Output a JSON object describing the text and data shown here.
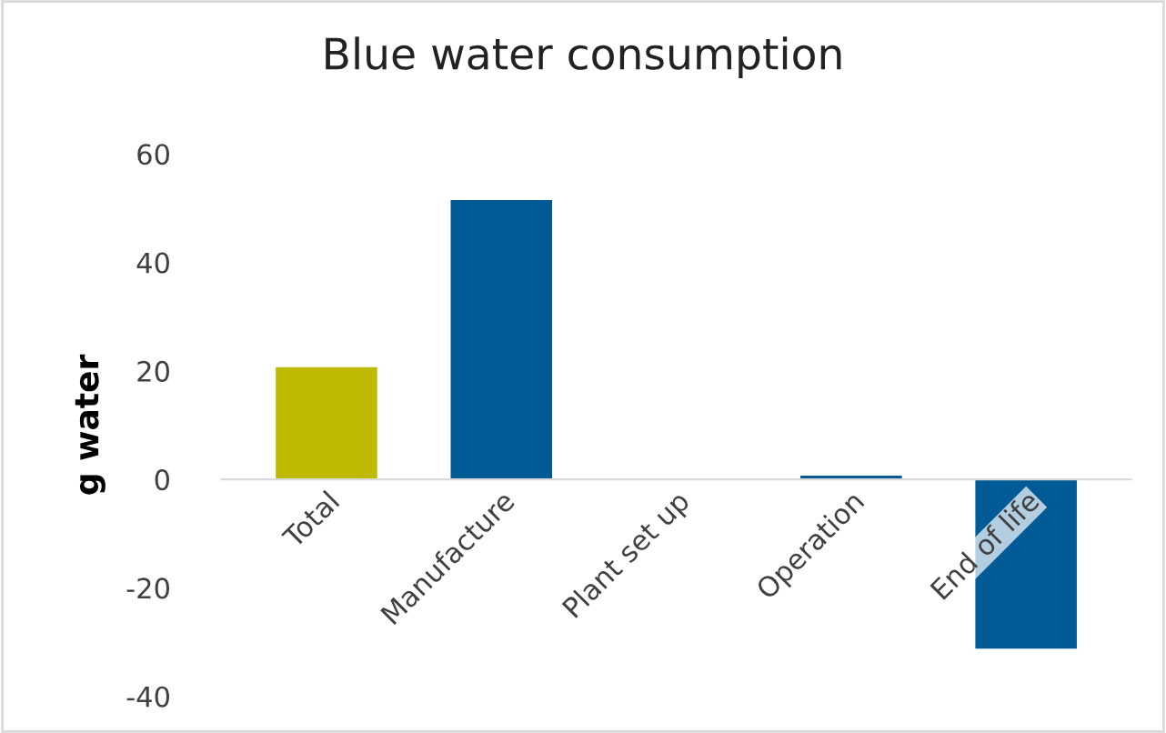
{
  "chart_data": {
    "type": "bar",
    "title": "Blue water consumption",
    "ylabel": "g water",
    "categories": [
      "Total",
      "Manufacture",
      "Plant set up",
      "Operation",
      "End of life"
    ],
    "values": [
      20.7,
      51.5,
      0,
      0.7,
      -31.2
    ],
    "colors": [
      "#bfba00",
      "#005a96",
      "#005a96",
      "#005a96",
      "#005a96"
    ],
    "ylim": [
      -40,
      60
    ],
    "yticks": [
      -40,
      -20,
      0,
      20,
      40,
      60
    ],
    "grid": false,
    "legend": false
  }
}
